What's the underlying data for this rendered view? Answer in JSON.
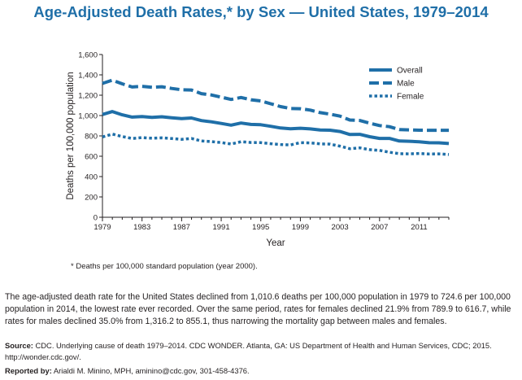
{
  "title": "Age-Adjusted Death Rates,* by Sex — United States, 1979–2014",
  "footnote": "* Deaths per 100,000 standard population (year 2000).",
  "summary": "The age-adjusted death rate for the United States declined from 1,010.6 deaths per 100,000 population in 1979 to 724.6 per 100,000 population in 2014, the lowest rate ever recorded. Over the same period, rates for females declined 21.9% from 789.9 to 616.7, while rates for males declined 35.0% from 1,316.2 to 855.1, thus narrowing the mortality gap between males and females.",
  "source": {
    "label": "Source:",
    "text": "CDC. Underlying cause of death 1979–2014. CDC WONDER. Atlanta, GA: US Department of Health and Human Services, CDC; 2015. http://wonder.cdc.gov/."
  },
  "reported": {
    "label": "Reported by:",
    "text": "Arialdi M. Minino, MPH, aminino@cdc.gov, 301-458-4376."
  },
  "colors": {
    "title": "#1f6fa8",
    "series": "#1f6fa8",
    "axis": "#231f20"
  },
  "chart_data": {
    "type": "line",
    "title": "Age-Adjusted Death Rates,* by Sex — United States, 1979–2014",
    "xlabel": "Year",
    "ylabel": "Deaths per 100,000 population",
    "xlim": [
      1979,
      2014
    ],
    "ylim": [
      0,
      1600
    ],
    "x_ticks": [
      "1979",
      "1983",
      "1987",
      "1991",
      "1995",
      "1999",
      "2003",
      "2007",
      "2011"
    ],
    "y_ticks": [
      "0",
      "200",
      "400",
      "600",
      "800",
      "1,000",
      "1,200",
      "1,400",
      "1,600"
    ],
    "legend_position": "top-right",
    "grid": false,
    "x": [
      1979,
      1980,
      1981,
      1982,
      1983,
      1984,
      1985,
      1986,
      1987,
      1988,
      1989,
      1990,
      1991,
      1992,
      1993,
      1994,
      1995,
      1996,
      1997,
      1998,
      1999,
      2000,
      2001,
      2002,
      2003,
      2004,
      2005,
      2006,
      2007,
      2008,
      2009,
      2010,
      2011,
      2012,
      2013,
      2014
    ],
    "series": [
      {
        "name": "Overall",
        "style": "solid",
        "color": "#1f6fa8",
        "values": [
          1010.6,
          1039.1,
          1007.1,
          985.0,
          990.0,
          982.5,
          988.1,
          978.6,
          970.0,
          975.7,
          950.5,
          938.7,
          922.3,
          905.6,
          926.1,
          913.0,
          909.8,
          894.1,
          877.8,
          869.6,
          875.6,
          869.0,
          858.8,
          855.9,
          843.5,
          813.7,
          815.0,
          791.8,
          775.3,
          774.9,
          749.6,
          747.0,
          741.3,
          732.8,
          731.9,
          724.6
        ]
      },
      {
        "name": "Male",
        "style": "dashed",
        "color": "#1f6fa8",
        "values": [
          1316.2,
          1348.1,
          1311.7,
          1280.4,
          1287.6,
          1278.7,
          1283.5,
          1266.3,
          1253.3,
          1251.3,
          1215.4,
          1202.8,
          1180.5,
          1158.3,
          1177.3,
          1155.5,
          1143.9,
          1115.7,
          1088.1,
          1069.4,
          1067.0,
          1053.8,
          1029.1,
          1013.7,
          994.3,
          955.7,
          951.1,
          924.6,
          901.8,
          890.5,
          862.2,
          859.3,
          855.8,
          855.4,
          855.1,
          855.1
        ]
      },
      {
        "name": "Female",
        "style": "dotted",
        "color": "#1f6fa8",
        "values": [
          789.9,
          817.9,
          793.6,
          774.7,
          783.3,
          776.7,
          781.0,
          774.4,
          766.2,
          774.1,
          750.5,
          743.7,
          734.4,
          720.0,
          742.2,
          735.0,
          733.7,
          723.3,
          715.3,
          711.6,
          734.0,
          731.4,
          721.8,
          718.9,
          699.1,
          673.3,
          682.7,
          664.6,
          657.3,
          639.5,
          624.6,
          623.6,
          627.0,
          621.8,
          623.5,
          616.7
        ]
      }
    ]
  }
}
